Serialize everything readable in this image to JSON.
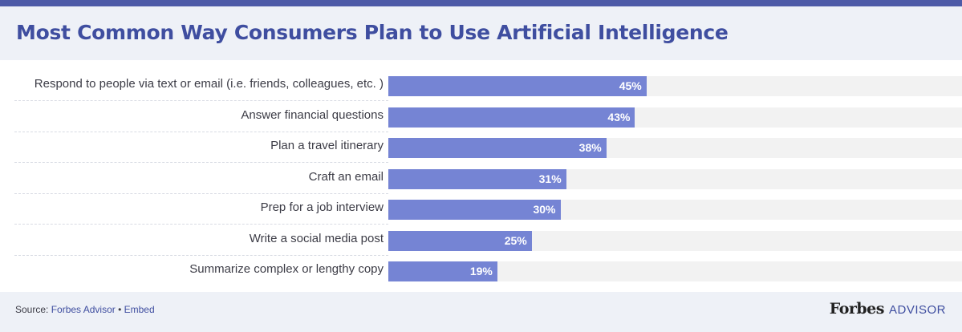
{
  "title": "Most Common Way Consumers Plan to Use Artificial Intelligence",
  "chart_data": {
    "type": "bar",
    "orientation": "horizontal",
    "title": "Most Common Way Consumers Plan to Use Artificial Intelligence",
    "categories": [
      "Respond to people via text or email (i.e. friends, colleagues, etc. )",
      "Answer financial questions",
      "Plan a travel itinerary",
      "Craft an email",
      "Prep for a job interview",
      "Write a social media post",
      "Summarize complex or lengthy copy"
    ],
    "values": [
      45,
      43,
      38,
      31,
      30,
      25,
      19
    ],
    "value_labels": [
      "45%",
      "43%",
      "38%",
      "31%",
      "30%",
      "25%",
      "19%"
    ],
    "unit": "%",
    "xlim": [
      0,
      100
    ],
    "grid": false,
    "legend": "none",
    "bar_color": "#7584d4",
    "track_color": "#f2f2f2"
  },
  "footer": {
    "source_prefix": "Source: ",
    "source_name": "Forbes Advisor",
    "separator": " • ",
    "embed_label": "Embed",
    "brand_name": "Forbes",
    "brand_suffix": "ADVISOR"
  },
  "colors": {
    "accent": "#4d5aa7",
    "title": "#3f4ea0",
    "header_bg": "#eef1f7"
  }
}
